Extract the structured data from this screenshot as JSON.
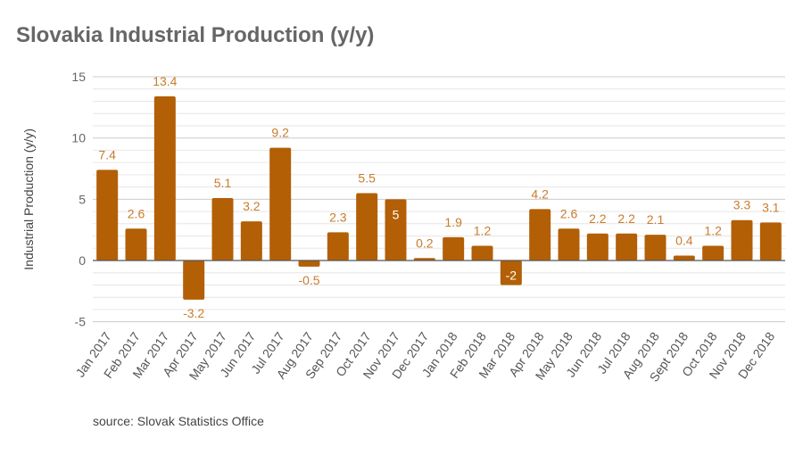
{
  "chart_data": {
    "type": "bar",
    "title": "Slovakia Industrial Production (y/y)",
    "ylabel": "Industrial Production (y/y)",
    "xlabel": "",
    "source": "source: Slovak Statistics Office",
    "ylim": [
      -5,
      15
    ],
    "yticks": [
      -5,
      0,
      5,
      10,
      15
    ],
    "minor_grid_step": 1,
    "grid": true,
    "legend": "none",
    "bar_color": "#b35f06",
    "label_color": "#c97c2c",
    "categories": [
      "Jan 2017",
      "Feb 2017",
      "Mar 2017",
      "Apr 2017",
      "May 2017",
      "Jun 2017",
      "Jul 2017",
      "Aug 2017",
      "Sep 2017",
      "Oct 2017",
      "Nov 2017",
      "Dec 2017",
      "Jan 2018",
      "Feb 2018",
      "Mar 2018",
      "Apr 2018",
      "May 2018",
      "Jun 2018",
      "Jul 2018",
      "Aug 2018",
      "Sept 2018",
      "Oct 2018",
      "Nov 2018",
      "Dec 2018"
    ],
    "values": [
      7.4,
      2.6,
      13.4,
      -3.2,
      5.1,
      3.2,
      9.2,
      -0.5,
      2.3,
      5.5,
      5,
      0.2,
      1.9,
      1.2,
      -2,
      4.2,
      2.6,
      2.2,
      2.2,
      2.1,
      0.4,
      1.2,
      3.3,
      3.1
    ]
  }
}
